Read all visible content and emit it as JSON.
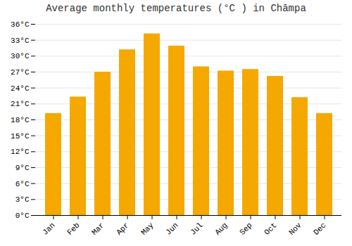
{
  "chart_data": {
    "type": "bar",
    "title": "Average monthly temperatures (°C ) in Chāmpa",
    "categories": [
      "Jan",
      "Feb",
      "Mar",
      "Apr",
      "May",
      "Jun",
      "Jul",
      "Aug",
      "Sep",
      "Oct",
      "Nov",
      "Dec"
    ],
    "values": [
      19.2,
      22.3,
      27.0,
      31.2,
      34.2,
      31.9,
      28.0,
      27.2,
      27.5,
      26.2,
      22.2,
      19.2
    ],
    "color": "#F5A800",
    "ylim": [
      0,
      36
    ],
    "yticks": [
      {
        "value": 0,
        "label": "0°C"
      },
      {
        "value": 3,
        "label": "3°C"
      },
      {
        "value": 6,
        "label": "6°C"
      },
      {
        "value": 9,
        "label": "9°C"
      },
      {
        "value": 12,
        "label": "12°C"
      },
      {
        "value": 15,
        "label": "15°C"
      },
      {
        "value": 18,
        "label": "18°C"
      },
      {
        "value": 21,
        "label": "21°C"
      },
      {
        "value": 24,
        "label": "24°C"
      },
      {
        "value": 27,
        "label": "27°C"
      },
      {
        "value": 30,
        "label": "30°C"
      },
      {
        "value": 33,
        "label": "33°C"
      },
      {
        "value": 36,
        "label": "36°C"
      }
    ],
    "grid": true
  }
}
